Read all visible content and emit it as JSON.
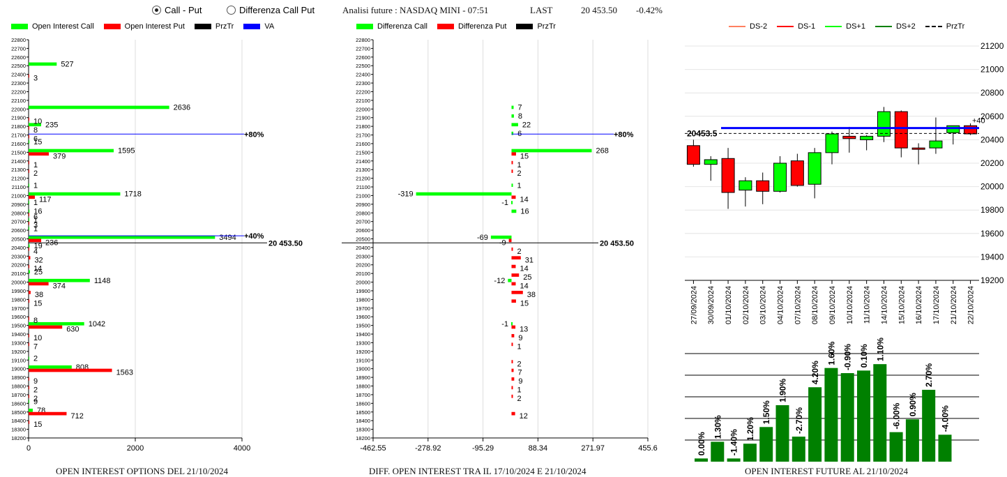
{
  "header": {
    "radio_call_put": "Call - Put",
    "radio_diff": "Differenza Call Put",
    "title": "Analisi future : NASDAQ MINI - 07:51",
    "last_label": "LAST",
    "last_value": "20 453.50",
    "change": "-0.42%"
  },
  "chart_data": [
    {
      "id": "oi_options",
      "type": "bar",
      "orientation": "horizontal",
      "caption": "OPEN INTEREST OPTIONS DEL 21/10/2024",
      "legend": [
        {
          "name": "Open Interest Call",
          "color": "#00ff00"
        },
        {
          "name": "Open Interest Put",
          "color": "#ff0000"
        },
        {
          "name": "PrzTr",
          "color": "#000000"
        },
        {
          "name": "VA",
          "color": "#0000ff"
        }
      ],
      "strike_min": 18200,
      "strike_max": 22800,
      "strike_step": 100,
      "xlim": [
        0,
        4700
      ],
      "xticks": [
        0,
        2000,
        4000
      ],
      "calls": [
        [
          22500,
          527
        ],
        [
          22000,
          2636
        ],
        [
          21800,
          235
        ],
        [
          21600,
          15
        ],
        [
          21500,
          1595
        ],
        [
          21100,
          1
        ],
        [
          21000,
          1718
        ],
        [
          20900,
          1
        ],
        [
          20800,
          16
        ],
        [
          20700,
          1
        ],
        [
          20600,
          1
        ],
        [
          20500,
          3494
        ],
        [
          20400,
          19
        ],
        [
          20100,
          25
        ],
        [
          20000,
          1148
        ],
        [
          19500,
          1042
        ],
        [
          19100,
          2
        ],
        [
          19000,
          808
        ],
        [
          18600,
          9
        ],
        [
          18500,
          78
        ]
      ],
      "puts": [
        [
          22400,
          3
        ],
        [
          21900,
          10
        ],
        [
          21800,
          8
        ],
        [
          21700,
          6
        ],
        [
          21500,
          379
        ],
        [
          21400,
          1
        ],
        [
          21300,
          2
        ],
        [
          21000,
          117
        ],
        [
          20800,
          6
        ],
        [
          20700,
          3
        ],
        [
          20500,
          236
        ],
        [
          20400,
          4
        ],
        [
          20300,
          32
        ],
        [
          20200,
          14
        ],
        [
          20000,
          374
        ],
        [
          19900,
          38
        ],
        [
          19800,
          15
        ],
        [
          19600,
          8
        ],
        [
          19500,
          630
        ],
        [
          19400,
          10
        ],
        [
          19300,
          7
        ],
        [
          19000,
          1563
        ],
        [
          18900,
          9
        ],
        [
          18800,
          2
        ],
        [
          18700,
          2
        ],
        [
          18500,
          712
        ],
        [
          18400,
          15
        ]
      ],
      "va_lines": [
        {
          "strike": 21710,
          "label": "+80%"
        },
        {
          "strike": 20535,
          "label": "+40%"
        }
      ],
      "prztr": {
        "value": 20453.5,
        "label": "20 453.50"
      }
    },
    {
      "id": "diff_oi",
      "type": "bar",
      "orientation": "horizontal",
      "caption": "DIFF. OPEN INTEREST TRA IL 17/10/2024 E 21/10/2024",
      "legend": [
        {
          "name": "Differenza Call",
          "color": "#00ff00"
        },
        {
          "name": "Differenza Put",
          "color": "#ff0000"
        },
        {
          "name": "PrzTr",
          "color": "#000000"
        }
      ],
      "strike_min": 18200,
      "strike_max": 22800,
      "strike_step": 100,
      "xlim": [
        -462.55,
        455.6
      ],
      "xticks": [
        "-462.55",
        "-278.92",
        "-95.29",
        "88.34",
        "271.97",
        "455.6"
      ],
      "calls": [
        [
          22000,
          7
        ],
        [
          21900,
          8
        ],
        [
          21800,
          22
        ],
        [
          21700,
          6
        ],
        [
          21500,
          268
        ],
        [
          21100,
          1
        ],
        [
          21000,
          -319
        ],
        [
          20900,
          -1
        ],
        [
          20800,
          16
        ],
        [
          20500,
          -69
        ],
        [
          20000,
          -12
        ],
        [
          19500,
          -1
        ]
      ],
      "puts": [
        [
          21500,
          15
        ],
        [
          21400,
          1
        ],
        [
          21300,
          2
        ],
        [
          21000,
          14
        ],
        [
          20500,
          -9
        ],
        [
          20400,
          2
        ],
        [
          20300,
          31
        ],
        [
          20200,
          14
        ],
        [
          20100,
          25
        ],
        [
          20000,
          14
        ],
        [
          19900,
          38
        ],
        [
          19800,
          15
        ],
        [
          19500,
          13
        ],
        [
          19400,
          9
        ],
        [
          19300,
          1
        ],
        [
          19100,
          2
        ],
        [
          19000,
          7
        ],
        [
          18900,
          9
        ],
        [
          18800,
          1
        ],
        [
          18700,
          2
        ],
        [
          18500,
          12
        ]
      ],
      "va_lines": [
        {
          "strike": 21710,
          "label": "+80%"
        }
      ],
      "prztr": {
        "value": 20453.5,
        "label": "20 453.50"
      }
    },
    {
      "id": "candles",
      "type": "candlestick",
      "legend": [
        {
          "name": "DS-2",
          "color": "#ff8060"
        },
        {
          "name": "DS-1",
          "color": "#ff0000"
        },
        {
          "name": "DS+1",
          "color": "#00ff00"
        },
        {
          "name": "DS+2",
          "color": "#008000"
        },
        {
          "name": "PrzTr",
          "color": "#000000"
        }
      ],
      "ylim": [
        19200,
        21200
      ],
      "yticks": [
        19200,
        19400,
        19600,
        19800,
        20000,
        20200,
        20400,
        20600,
        20800,
        21000,
        21200
      ],
      "categories": [
        "27/09/2024",
        "30/09/2024",
        "01/10/2024",
        "02/10/2024",
        "03/10/2024",
        "04/10/2024",
        "07/10/2024",
        "08/10/2024",
        "09/10/2024",
        "10/10/2024",
        "11/10/2024",
        "14/10/2024",
        "15/10/2024",
        "16/10/2024",
        "17/10/2024",
        "21/10/2024",
        "22/10/2024"
      ],
      "ohlc": [
        [
          20350,
          20400,
          20170,
          20190
        ],
        [
          20190,
          20260,
          20050,
          20230
        ],
        [
          20240,
          20330,
          19810,
          19950
        ],
        [
          19970,
          20080,
          19830,
          20050
        ],
        [
          20050,
          20120,
          19850,
          19960
        ],
        [
          19960,
          20260,
          19950,
          20200
        ],
        [
          20220,
          20280,
          20000,
          20010
        ],
        [
          20020,
          20330,
          19900,
          20290
        ],
        [
          20290,
          20470,
          20190,
          20450
        ],
        [
          20430,
          20510,
          20290,
          20410
        ],
        [
          20400,
          20440,
          20310,
          20430
        ],
        [
          20430,
          20680,
          20380,
          20640
        ],
        [
          20640,
          20650,
          20250,
          20330
        ],
        [
          20330,
          20370,
          20190,
          20320
        ],
        [
          20330,
          20590,
          20280,
          20390
        ],
        [
          20460,
          20520,
          20360,
          20520
        ],
        [
          20520,
          20540,
          20440,
          20450
        ]
      ],
      "va_level": 20500,
      "va_label": "+40",
      "prztr": {
        "value": 20453.5,
        "label": "20453.5"
      }
    },
    {
      "id": "oi_future",
      "type": "bar",
      "caption": "OPEN INTEREST FUTURE AL 21/10/2024",
      "color": "#008000",
      "values": [
        0.5,
        3.1,
        0.5,
        2.8,
        5.4,
        8.8,
        3.9,
        11.6,
        14.6,
        13.8,
        14.2,
        15.2,
        4.6,
        6.6,
        11.2,
        4.2
      ],
      "labels": [
        "0.00%",
        "1.30%",
        "-1.40%",
        "1.20%",
        "1.50%",
        "1.90%",
        "-2.70%",
        "4.20%",
        "1.60%",
        "-0.90%",
        "0.10%",
        "1.10%",
        "-6.00%",
        "0.90%",
        "2.70%",
        "-4.00%"
      ]
    }
  ]
}
